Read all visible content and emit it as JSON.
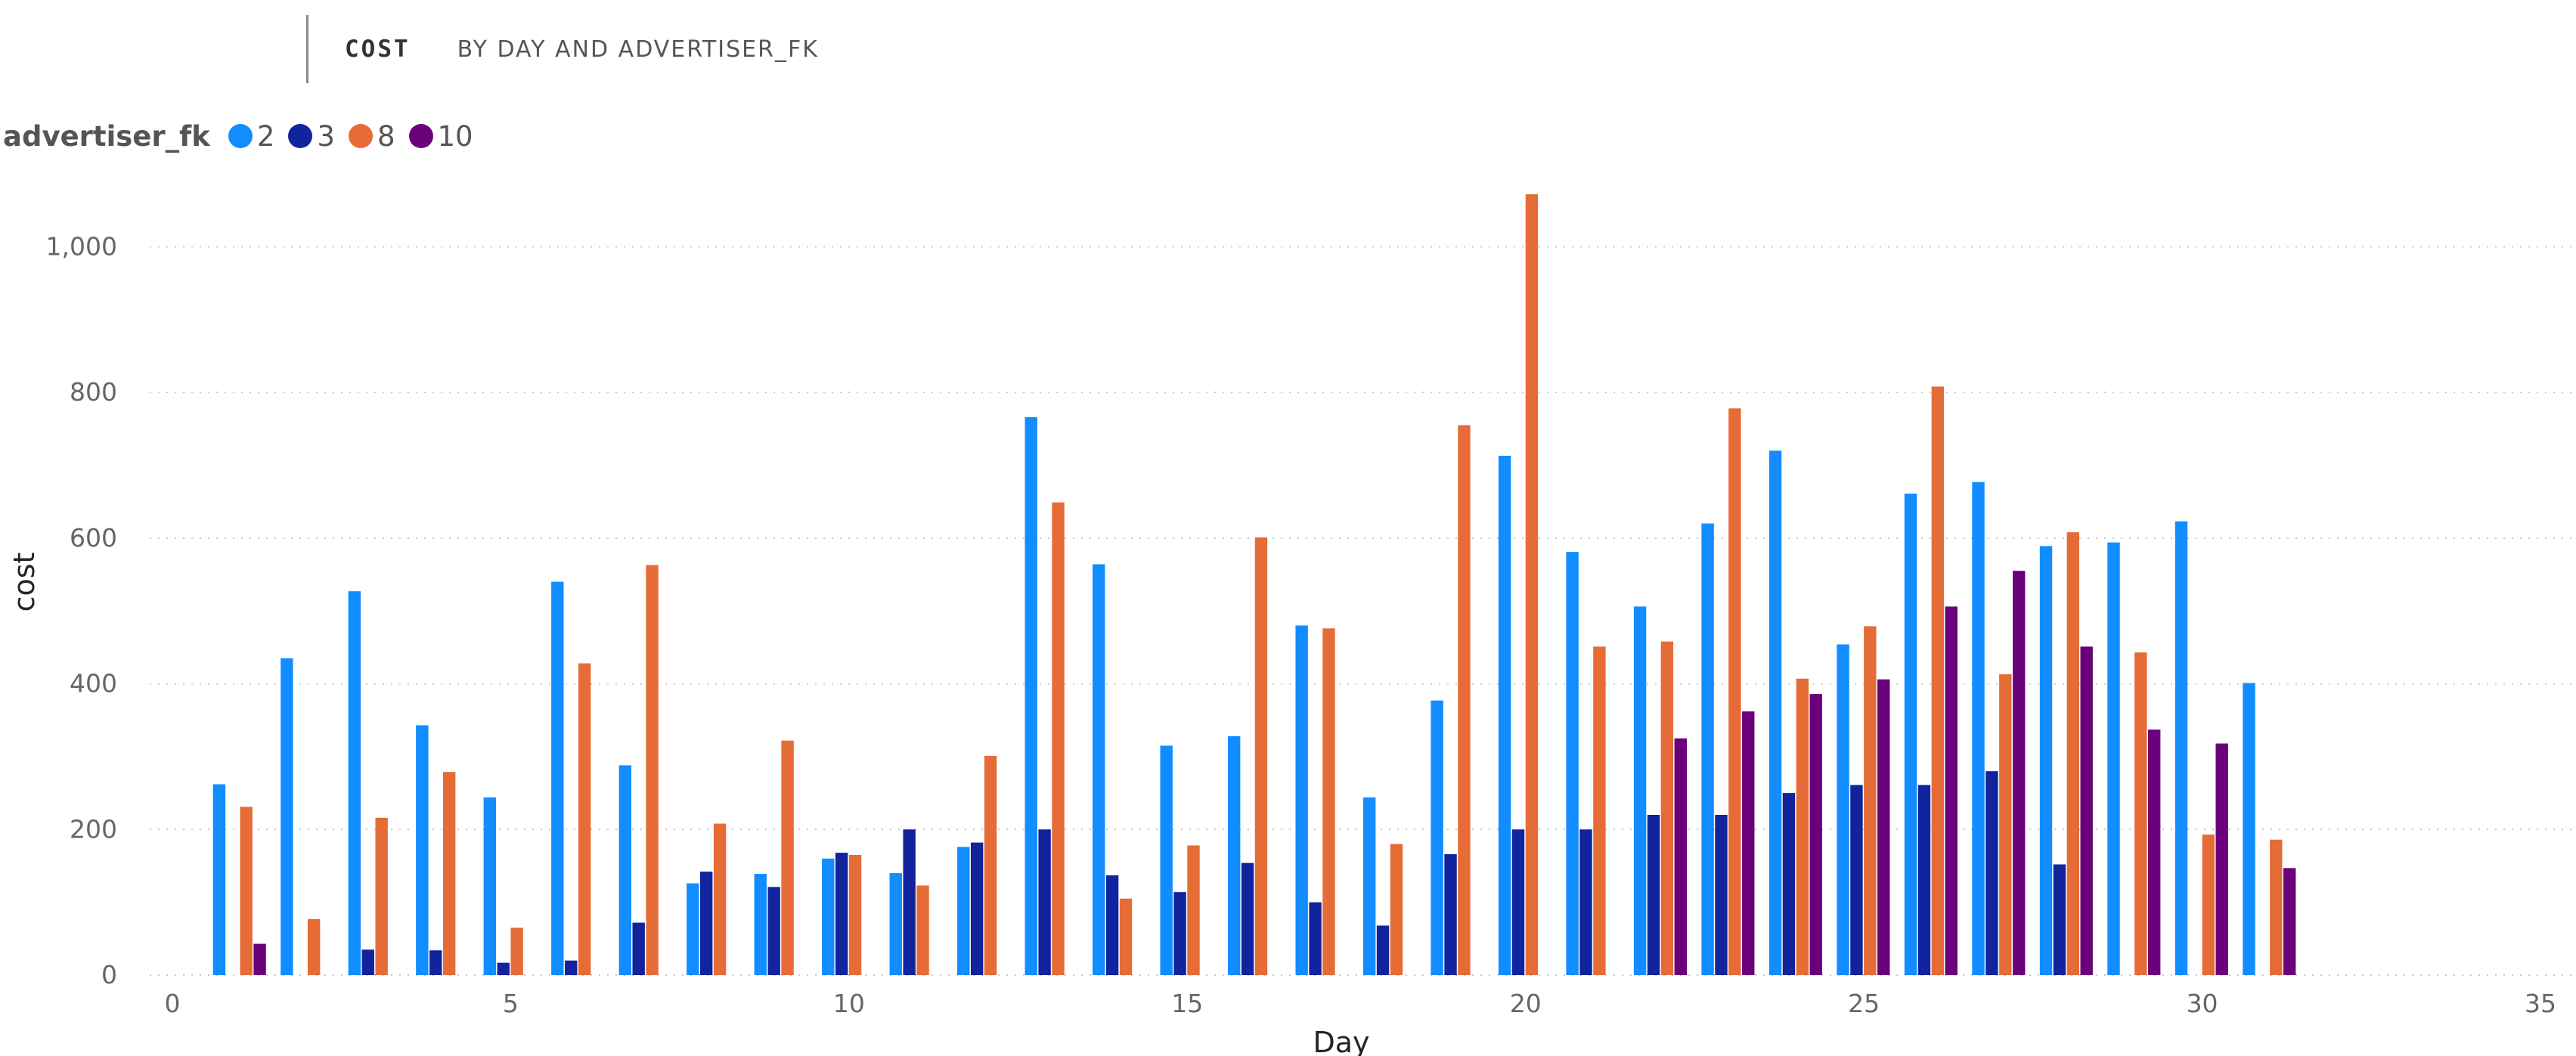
{
  "title": {
    "main": "COST",
    "sub": "BY DAY AND ADVERTISER_FK"
  },
  "legend": {
    "title": "advertiser_fk",
    "items": [
      {
        "label": "2",
        "color": "#118DFF"
      },
      {
        "label": "3",
        "color": "#12239E"
      },
      {
        "label": "8",
        "color": "#E66C37"
      },
      {
        "label": "10",
        "color": "#6B007B"
      }
    ]
  },
  "chart_data": {
    "type": "bar",
    "xlabel": "Day",
    "ylabel": "cost",
    "xlim": [
      0,
      35
    ],
    "ylim": [
      0,
      1100
    ],
    "xticks": [
      0,
      5,
      10,
      15,
      20,
      25,
      30,
      35
    ],
    "xtick_labels": [
      "0",
      "5",
      "10",
      "15",
      "20",
      "25",
      "30",
      "35"
    ],
    "yticks": [
      0,
      200,
      400,
      600,
      800,
      1000
    ],
    "ytick_labels": [
      "0",
      "200",
      "400",
      "600",
      "800",
      "1,000"
    ],
    "grid": "horizontal-dotted",
    "legend_position": "top-left",
    "x": [
      1,
      2,
      3,
      4,
      5,
      6,
      7,
      8,
      9,
      10,
      11,
      12,
      13,
      14,
      15,
      16,
      17,
      18,
      19,
      20,
      21,
      22,
      23,
      24,
      25,
      26,
      27,
      28,
      29,
      30,
      31
    ],
    "series": [
      {
        "name": "2",
        "color": "#118DFF",
        "values": [
          262,
          435,
          527,
          343,
          244,
          540,
          288,
          126,
          139,
          160,
          140,
          176,
          766,
          564,
          315,
          328,
          480,
          244,
          377,
          713,
          581,
          506,
          620,
          720,
          454,
          661,
          677,
          589,
          594,
          623,
          401
        ]
      },
      {
        "name": "3",
        "color": "#12239E",
        "values": [
          null,
          null,
          35,
          34,
          17,
          20,
          72,
          142,
          121,
          168,
          200,
          182,
          200,
          137,
          114,
          154,
          100,
          68,
          166,
          200,
          200,
          220,
          220,
          250,
          261,
          261,
          280,
          152,
          null,
          null,
          null
        ]
      },
      {
        "name": "8",
        "color": "#E66C37",
        "values": [
          231,
          77,
          216,
          279,
          65,
          428,
          563,
          208,
          322,
          165,
          123,
          301,
          649,
          105,
          178,
          601,
          476,
          180,
          755,
          1072,
          451,
          458,
          778,
          407,
          479,
          808,
          413,
          608,
          443,
          193,
          186
        ]
      },
      {
        "name": "10",
        "color": "#6B007B",
        "values": [
          43,
          null,
          null,
          null,
          null,
          null,
          null,
          null,
          null,
          null,
          null,
          null,
          null,
          null,
          null,
          null,
          null,
          null,
          null,
          null,
          null,
          325,
          362,
          386,
          406,
          506,
          555,
          451,
          337,
          318,
          147
        ]
      }
    ]
  }
}
